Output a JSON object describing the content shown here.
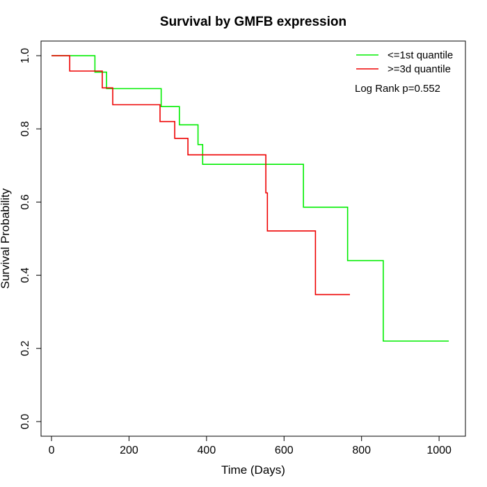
{
  "chart_data": {
    "type": "line",
    "title": "Survival by GMFB expression",
    "xlabel": "Time (Days)",
    "ylabel": "Survival Probability",
    "xlim": [
      -27,
      1068
    ],
    "ylim": [
      -0.04,
      1.04
    ],
    "x_ticks": [
      0,
      200,
      400,
      600,
      800,
      1000
    ],
    "y_ticks": [
      0.0,
      0.2,
      0.4,
      0.6,
      0.8,
      1.0
    ],
    "x_tick_labels": [
      "0",
      "200",
      "400",
      "600",
      "800",
      "1000"
    ],
    "y_tick_labels": [
      "0.0",
      "0.2",
      "0.4",
      "0.6",
      "0.8",
      "1.0"
    ],
    "grid": false,
    "legend_position": "top-right",
    "annotation": "Log Rank p=0.552",
    "series": [
      {
        "name": "<=1st quantile",
        "color": "#00ee00",
        "step": true,
        "points": [
          [
            0,
            1.0
          ],
          [
            112,
            0.955
          ],
          [
            142,
            0.91
          ],
          [
            283,
            0.861
          ],
          [
            330,
            0.811
          ],
          [
            378,
            0.757
          ],
          [
            390,
            0.703
          ],
          [
            650,
            0.586
          ],
          [
            764,
            0.44
          ],
          [
            856,
            0.22
          ],
          [
            1025,
            0.22
          ]
        ]
      },
      {
        "name": ">=3d quantile",
        "color": "#ee0000",
        "step": true,
        "points": [
          [
            0,
            1.0
          ],
          [
            47,
            0.958
          ],
          [
            131,
            0.912
          ],
          [
            158,
            0.866
          ],
          [
            280,
            0.82
          ],
          [
            318,
            0.774
          ],
          [
            352,
            0.729
          ],
          [
            553,
            0.625
          ],
          [
            557,
            0.521
          ],
          [
            681,
            0.347
          ],
          [
            770,
            0.347
          ]
        ]
      }
    ]
  }
}
